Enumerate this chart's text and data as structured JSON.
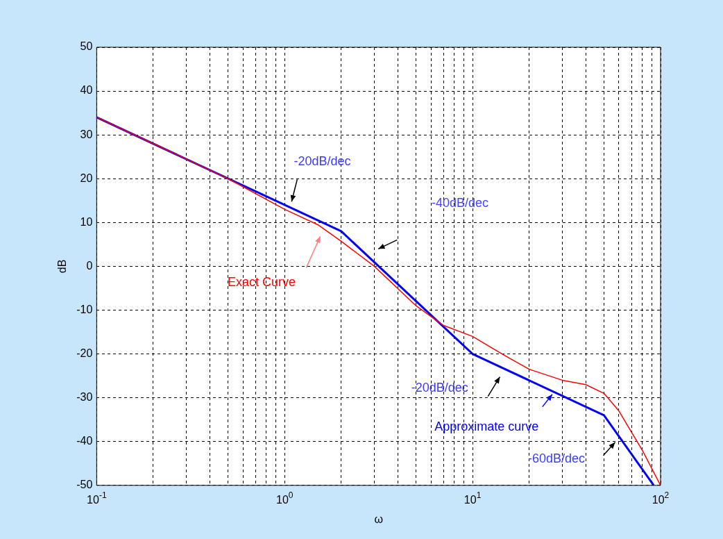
{
  "chart_data": {
    "type": "line",
    "xlabel": "ω",
    "ylabel": "dB",
    "series": [
      {
        "color": "#ff0000",
        "x": [
          0.1,
          0.2,
          0.5,
          1,
          1.5,
          2,
          3,
          5,
          7,
          10,
          15,
          20,
          30,
          40,
          50,
          60,
          80,
          100
        ],
        "values": [
          34,
          28,
          20,
          13,
          9.5,
          5.7,
          0,
          -9,
          -13.5,
          -16,
          -20.5,
          -23.5,
          -26,
          -27,
          -29,
          -33,
          -42,
          -50
        ]
      },
      {
        "color": "#0000ff",
        "x": [
          0.1,
          2,
          10,
          50,
          92
        ],
        "values": [
          34,
          8,
          -20,
          -34,
          -50
        ]
      }
    ],
    "annotations": [
      "-20dB/dec",
      "-40dB/dec",
      "Exact Curve",
      "-20dB/dec",
      "Approximate curve",
      "-60dB/dec"
    ],
    "log": "x",
    "grid": true,
    "legend": false,
    "marker": "none",
    "line_style": "solid",
    "xlim": [
      0.1,
      100
    ],
    "xticks": [
      {
        "value": 0.1,
        "label": "10$^{-1}$"
      },
      {
        "value": 0.2,
        "label": null
      },
      {
        "value": 0.3,
        "label": null
      },
      {
        "value": 0.4,
        "label": null
      },
      {
        "value": 0.5,
        "label": null
      },
      {
        "value": 0.6,
        "label": null
      },
      {
        "value": 0.7,
        "label": null
      },
      {
        "value": 0.8,
        "label": null
      },
      {
        "value": 0.9,
        "label": null
      },
      {
        "value": 1,
        "label": "10$^{0}$"
      },
      {
        "value": 2,
        "label": null
      },
      {
        "value": 3,
        "label": null
      },
      {
        "value": 4,
        "label": null
      },
      {
        "value": 5,
        "label": null
      },
      {
        "value": 6,
        "label": null
      },
      {
        "value": 7,
        "label": null
      },
      {
        "value": 8,
        "label": null
      },
      {
        "value": 9,
        "label": null
      },
      {
        "value": 10,
        "label": "10$^{1}$"
      },
      {
        "value": 20,
        "label": null
      },
      {
        "value": 30,
        "label": null
      },
      {
        "value": 40,
        "label": null
      },
      {
        "value": 50,
        "label": null
      },
      {
        "value": 60,
        "label": null
      },
      {
        "value": 70,
        "label": null
      },
      {
        "value": 80,
        "label": null
      },
      {
        "value": 90,
        "label": null
      },
      {
        "value": 100,
        "label": "10$^{2}$"
      }
    ],
    "ylim": [
      -50,
      50
    ],
    "yticks": [
      -50,
      -40,
      -30,
      -20,
      -10,
      0,
      10,
      20,
      30,
      40,
      50
    ]
  }
}
